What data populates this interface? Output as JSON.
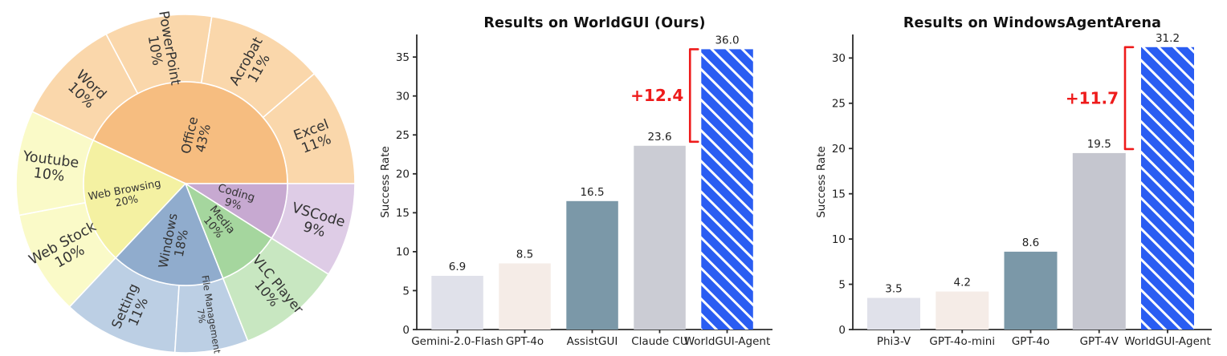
{
  "page": {
    "background": "#ffffff"
  },
  "chart_data": [
    {
      "name": "task-app-distribution-sunburst",
      "type": "pie",
      "subtype": "sunburst",
      "legend_position": "none",
      "grid": false,
      "text_color": "#333333",
      "segments": [
        {
          "label": "Office",
          "pct": "43%",
          "value": 43,
          "color": "#f6bd80",
          "child_color": "#fad7ab",
          "fs": 16,
          "lr": 60,
          "children": [
            {
              "label": "Excel",
              "pct": "11%",
              "value": 11,
              "fs": 17,
              "lr": 170
            },
            {
              "label": "Acrobat",
              "pct": "11%",
              "value": 11,
              "fs": 17,
              "lr": 170
            },
            {
              "label": "PowerPoint",
              "pct": "10%",
              "value": 10,
              "fs": 17,
              "lr": 170
            },
            {
              "label": "Word",
              "pct": "10%",
              "value": 10,
              "fs": 17,
              "lr": 170
            }
          ]
        },
        {
          "label": "Web Browsing",
          "pct": "20%",
          "value": 20,
          "color": "#f4f1a2",
          "child_color": "#fafac8",
          "fs": 13,
          "lr": 76,
          "children": [
            {
              "label": "Youtube",
              "pct": "10%",
              "value": 10,
              "fs": 17.5,
              "lr": 170
            },
            {
              "label": "Web Stock",
              "pct": "10%",
              "value": 10,
              "fs": 17.5,
              "lr": 170
            }
          ]
        },
        {
          "label": "Windows",
          "pct": "18%",
          "value": 18,
          "color": "#90accd",
          "child_color": "#bccfe4",
          "fs": 15.5,
          "lr": 74,
          "children": [
            {
              "label": "Setting",
              "pct": "11%",
              "value": 11,
              "fs": 16.5,
              "lr": 170
            },
            {
              "label": "File Management",
              "pct": "7%",
              "value": 7,
              "fs": 11.5,
              "lr": 166
            }
          ]
        },
        {
          "label": "Media",
          "pct": "10%",
          "value": 10,
          "color": "#a5d69e",
          "child_color": "#c8e7c1",
          "fs": 13.5,
          "lr": 64,
          "children": [
            {
              "label": "VLC Player",
              "pct": "10%",
              "value": 10,
              "fs": 16.5,
              "lr": 170
            }
          ]
        },
        {
          "label": "Coding",
          "pct": "9%",
          "value": 9,
          "color": "#c7a9d1",
          "child_color": "#decce6",
          "fs": 13.5,
          "lr": 64,
          "children": [
            {
              "label": "VSCode",
              "pct": "9%",
              "value": 9,
              "fs": 17.5,
              "lr": 170
            }
          ]
        }
      ]
    },
    {
      "name": "worldgui-results",
      "type": "bar",
      "title": "Results on WorldGUI (Ours)",
      "xlabel": "",
      "ylabel": "Success Rate",
      "categories": [
        "Gemini-2.0-Flash",
        "GPT-4o",
        "AssistGUI",
        "Claude CU",
        "WorldGUI-Agent"
      ],
      "values": [
        6.9,
        8.5,
        16.5,
        23.6,
        36.0
      ],
      "value_labels": [
        "6.9",
        "8.5",
        "16.5",
        "23.6",
        "36.0"
      ],
      "bar_colors": [
        "#e0e1ea",
        "#f5ece7",
        "#7b98a8",
        "#cbccd4",
        "#2a5df2"
      ],
      "hatched_index": 4,
      "hatch_color": "#ffffff",
      "ylim": [
        0,
        37.9
      ],
      "yticks": [
        0,
        5,
        10,
        15,
        20,
        25,
        30,
        35
      ],
      "grid": false,
      "legend_position": "none",
      "annotation": {
        "label": "+12.4",
        "from_value": 23.6,
        "to_value": 36.0,
        "color": "#ee1b1b"
      }
    },
    {
      "name": "windowsagentarena-results",
      "type": "bar",
      "title": "Results on WindowsAgentArena",
      "xlabel": "",
      "ylabel": "Success Rate",
      "categories": [
        "Phi3-V",
        "GPT-4o-mini",
        "GPT-4o",
        "GPT-4V",
        "WorldGUI-Agent"
      ],
      "values": [
        3.5,
        4.2,
        8.6,
        19.5,
        31.2
      ],
      "value_labels": [
        "3.5",
        "4.2",
        "8.6",
        "19.5",
        "31.2"
      ],
      "bar_colors": [
        "#e0e1ea",
        "#f5ece7",
        "#7b98a8",
        "#c5c6cf",
        "#2a5df2"
      ],
      "hatched_index": 4,
      "hatch_color": "#ffffff",
      "ylim": [
        0,
        32.6
      ],
      "yticks": [
        0,
        5,
        10,
        15,
        20,
        25,
        30
      ],
      "grid": false,
      "legend_position": "none",
      "annotation": {
        "label": "+11.7",
        "from_value": 19.5,
        "to_value": 31.2,
        "color": "#ee1b1b"
      }
    }
  ]
}
